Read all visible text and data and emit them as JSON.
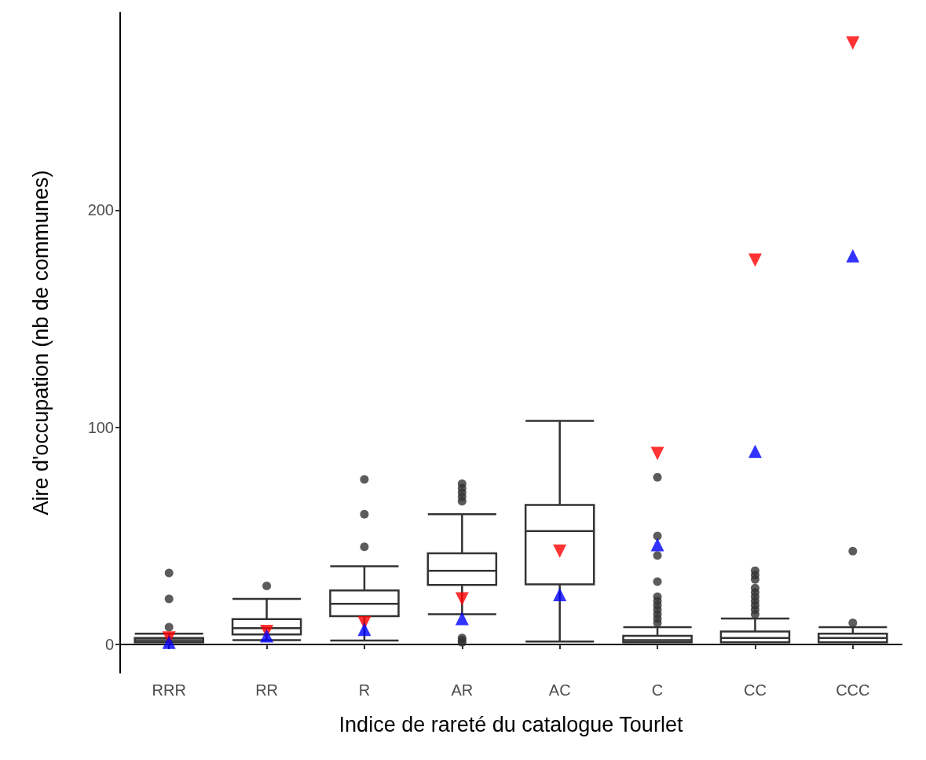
{
  "chart_data": {
    "type": "box",
    "xlabel": "Indice de rareté du catalogue Tourlet",
    "ylabel": "Aire d'occupation (nb de communes)",
    "categories": [
      "RRR",
      "RR",
      "R",
      "AR",
      "AC",
      "C",
      "CC",
      "CCC"
    ],
    "ylim": [
      -13,
      291
    ],
    "yticks": [
      0,
      100,
      200
    ],
    "grid": false,
    "series": [
      {
        "color": "#333333",
        "boxes": [
          {
            "low": 1,
            "q1": 1,
            "median": 2,
            "q3": 3,
            "high": 5,
            "outliers": [
              8,
              21,
              33
            ]
          },
          {
            "low": 2,
            "q1": 4.6,
            "median": 7.5,
            "q3": 11.7,
            "high": 21,
            "outliers": [
              27
            ]
          },
          {
            "low": 1.8,
            "q1": 13.1,
            "median": 18.8,
            "q3": 24.9,
            "high": 36,
            "outliers": [
              45,
              60,
              76
            ]
          },
          {
            "low": 14,
            "q1": 27.4,
            "median": 34,
            "q3": 42,
            "high": 60,
            "outliers": [
              1,
              2,
              3,
              66,
              68,
              70,
              72,
              74
            ]
          },
          {
            "low": 1.4,
            "q1": 27.7,
            "median": 52.2,
            "q3": 64.3,
            "high": 103
          },
          {
            "low": 1,
            "q1": 1,
            "median": 2,
            "q3": 4,
            "high": 8,
            "outliers": [
              10,
              12,
              14,
              16,
              18,
              20,
              22,
              29,
              41,
              50,
              77
            ]
          },
          {
            "low": 1,
            "q1": 1,
            "median": 3,
            "q3": 6,
            "high": 12,
            "outliers": [
              14,
              16,
              18,
              20,
              22,
              24,
              26,
              30,
              32,
              34
            ]
          },
          {
            "low": 1,
            "q1": 1,
            "median": 3,
            "q3": 5,
            "high": 8,
            "outliers": [
              10,
              43
            ]
          }
        ]
      },
      {
        "type": "scatter",
        "color": "#ff0000",
        "marker": "triangle-down",
        "x": [
          "RRR",
          "RR",
          "R",
          "AR",
          "AC",
          "C",
          "CC",
          "CCC"
        ],
        "values": [
          3,
          6,
          10,
          21,
          43,
          88,
          177,
          277
        ]
      },
      {
        "type": "scatter",
        "color": "#0000ff",
        "marker": "triangle",
        "x": [
          "RRR",
          "RR",
          "R",
          "AR",
          "AC",
          "C",
          "CC",
          "CCC"
        ],
        "values": [
          1,
          4,
          7,
          12,
          23,
          46,
          89,
          179
        ]
      }
    ]
  }
}
